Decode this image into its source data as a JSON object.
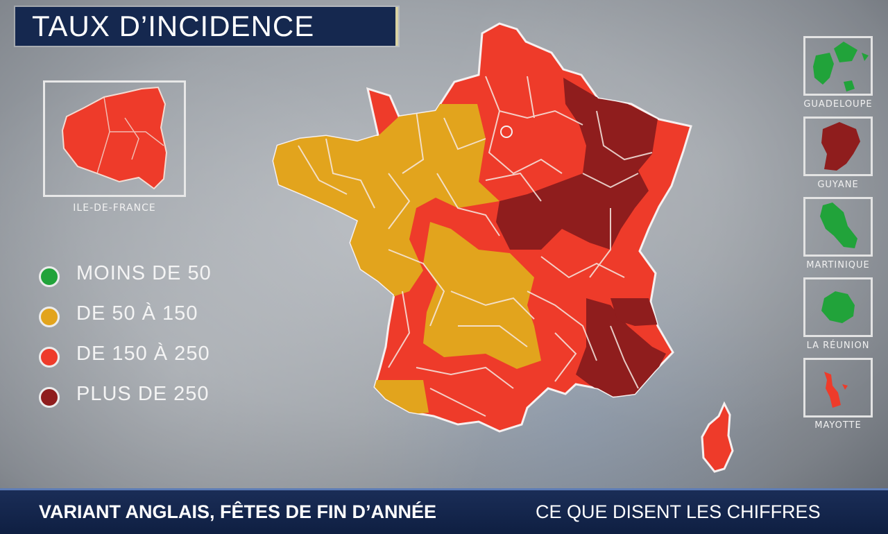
{
  "title": "TAUX D’INCIDENCE",
  "inset": {
    "label": "ILE-DE-FRANCE"
  },
  "legend": [
    {
      "label": "MOINS DE 50",
      "color": "#21a33a"
    },
    {
      "label": "DE 50 À 150",
      "color": "#e2a41d"
    },
    {
      "label": "DE 150 À 250",
      "color": "#ee3b2a"
    },
    {
      "label": "PLUS DE 250",
      "color": "#8f1d1d"
    }
  ],
  "overseas": [
    {
      "label": "GUADELOUPE",
      "category": "MOINS DE 50"
    },
    {
      "label": "GUYANE",
      "category": "PLUS DE 250"
    },
    {
      "label": "MARTINIQUE",
      "category": "MOINS DE 50"
    },
    {
      "label": "LA RÉUNION",
      "category": "MOINS DE 50"
    },
    {
      "label": "MAYOTTE",
      "category": "DE 150 À 250"
    }
  ],
  "ticker": {
    "headline": "VARIANT ANGLAIS, FÊTES DE FIN D’ANNÉE",
    "subline": "CE QUE DISENT LES CHIFFRES"
  }
}
